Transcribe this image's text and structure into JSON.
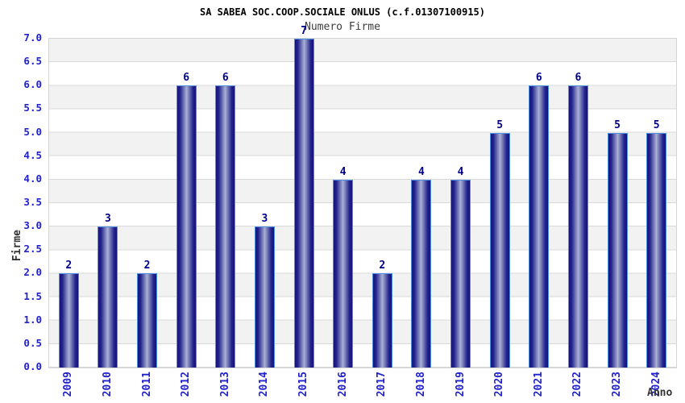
{
  "chart_data": {
    "type": "bar",
    "title": "SA SABEA SOC.COOP.SOCIALE ONLUS (c.f.01307100915)",
    "subtitle": "Numero Firme",
    "xlabel": "Anno",
    "ylabel": "Firme",
    "categories": [
      "2009",
      "2010",
      "2011",
      "2012",
      "2013",
      "2014",
      "2015",
      "2016",
      "2017",
      "2018",
      "2019",
      "2020",
      "2021",
      "2022",
      "2023",
      "2024"
    ],
    "values": [
      2,
      3,
      2,
      6,
      6,
      3,
      7,
      4,
      2,
      4,
      4,
      5,
      6,
      6,
      5,
      5
    ],
    "ylim": [
      0,
      7
    ],
    "ytick_step": 0.5,
    "ytick_format_decimals": 1,
    "bar_value_labels": [
      "2",
      "3",
      "2",
      "6",
      "6",
      "3",
      "7",
      "4",
      "2",
      "4",
      "4",
      "5",
      "6",
      "6",
      "5",
      "5"
    ],
    "legend": "none",
    "grid": "horizontal gridlines every 0.5 with alternating white/gray bands",
    "colors": {
      "bar_border": "#4a8fe2",
      "bar_dark": "#14147a",
      "bar_mid": "#23238c",
      "bar_light": "#aab1d4",
      "tick_label": "#2222cc",
      "value_label": "#00008b",
      "title": "#000000",
      "subtitle": "#3c3c3c",
      "axis_title": "#333333",
      "band_gray": "#f2f2f2",
      "gridline": "#d9d9d9",
      "plot_border": "#d4d4d4"
    }
  }
}
